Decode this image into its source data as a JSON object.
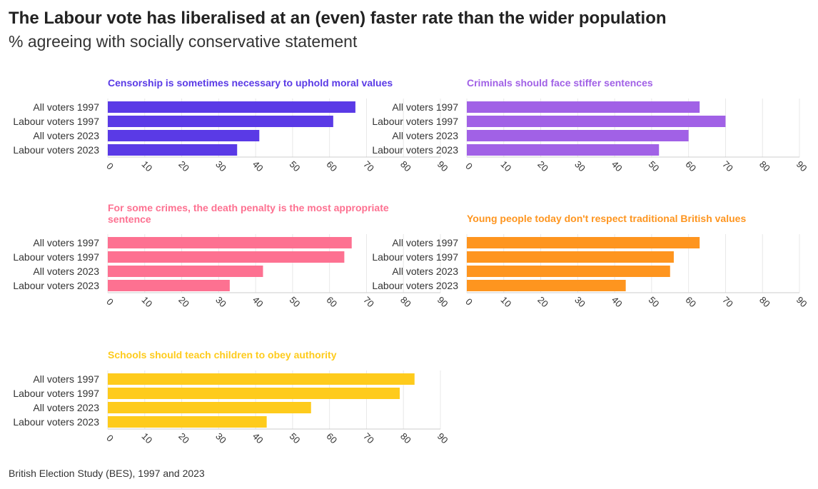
{
  "header": {
    "title": "The Labour vote has liberalised at an (even) faster rate than the wider population",
    "subtitle": "% agreeing with socially conservative statement"
  },
  "footer": {
    "source": "British Election Study (BES), 1997 and 2023"
  },
  "chart_data": [
    {
      "type": "bar",
      "orientation": "horizontal",
      "title": "Censorship is sometimes necessary to uphold moral values",
      "color": "#5a3ae6",
      "categories": [
        "All voters 1997",
        "Labour voters 1997",
        "All voters 2023",
        "Labour voters 2023"
      ],
      "values": [
        67,
        61,
        41,
        35
      ],
      "xlim": [
        0,
        90
      ],
      "xticks": [
        0,
        10,
        20,
        30,
        40,
        50,
        60,
        70,
        80,
        90
      ]
    },
    {
      "type": "bar",
      "orientation": "horizontal",
      "title": "Criminals should face stiffer sentences",
      "color": "#a161e6",
      "categories": [
        "All voters 1997",
        "Labour voters 1997",
        "All voters 2023",
        "Labour voters 2023"
      ],
      "values": [
        63,
        70,
        60,
        52
      ],
      "xlim": [
        0,
        90
      ],
      "xticks": [
        0,
        10,
        20,
        30,
        40,
        50,
        60,
        70,
        80,
        90
      ]
    },
    {
      "type": "bar",
      "orientation": "horizontal",
      "title": "For some crimes, the death penalty is the most appropriate sentence",
      "color": "#fd7191",
      "categories": [
        "All voters 1997",
        "Labour voters 1997",
        "All voters 2023",
        "Labour voters 2023"
      ],
      "values": [
        66,
        64,
        42,
        33
      ],
      "xlim": [
        0,
        90
      ],
      "xticks": [
        0,
        10,
        20,
        30,
        40,
        50,
        60,
        70,
        80,
        90
      ]
    },
    {
      "type": "bar",
      "orientation": "horizontal",
      "title": "Young people today don't respect traditional British values",
      "color": "#fe951f",
      "categories": [
        "All voters 1997",
        "Labour voters 1997",
        "All voters 2023",
        "Labour voters 2023"
      ],
      "values": [
        63,
        56,
        55,
        43
      ],
      "xlim": [
        0,
        90
      ],
      "xticks": [
        0,
        10,
        20,
        30,
        40,
        50,
        60,
        70,
        80,
        90
      ]
    },
    {
      "type": "bar",
      "orientation": "horizontal",
      "title": "Schools should teach children to obey authority",
      "color": "#fecb1c",
      "categories": [
        "All voters 1997",
        "Labour voters 1997",
        "All voters 2023",
        "Labour voters 2023"
      ],
      "values": [
        83,
        79,
        55,
        43
      ],
      "xlim": [
        0,
        90
      ],
      "xticks": [
        0,
        10,
        20,
        30,
        40,
        50,
        60,
        70,
        80,
        90
      ]
    }
  ]
}
